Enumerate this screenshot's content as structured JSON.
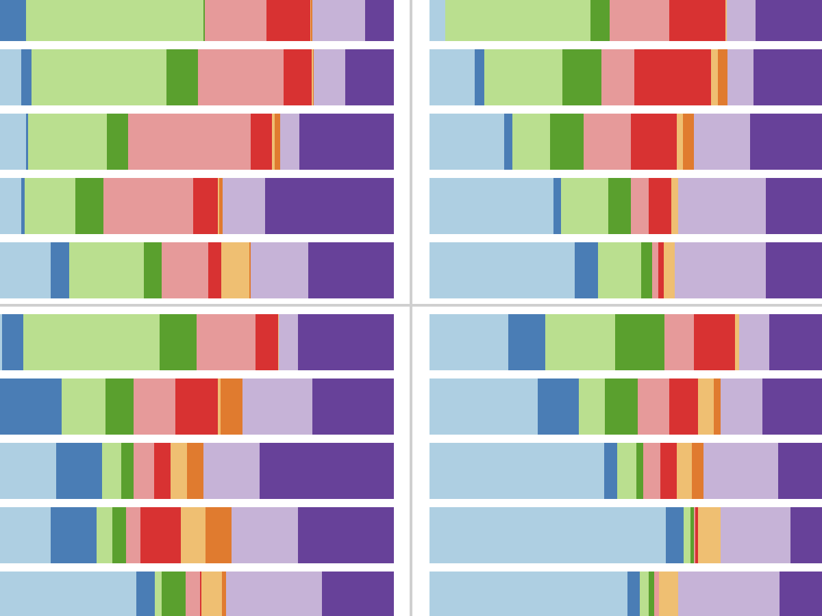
{
  "chart_data": [
    {
      "type": "stacked-barh",
      "xlim": [
        0,
        575
      ],
      "series": [
        {
          "color": "#aecfe2",
          "values": [
            0,
            31,
            38,
            31,
            74
          ]
        },
        {
          "color": "#4a7db5",
          "values": [
            38,
            15,
            3,
            5,
            27
          ]
        },
        {
          "color": "#badf8f",
          "values": [
            259,
            197,
            115,
            74,
            109
          ]
        },
        {
          "color": "#5aa02e",
          "values": [
            2,
            46,
            31,
            41,
            26
          ]
        },
        {
          "color": "#e69a9a",
          "values": [
            90,
            125,
            179,
            131,
            68
          ]
        },
        {
          "color": "#d83232",
          "values": [
            64,
            41,
            31,
            36,
            19
          ]
        },
        {
          "color": "#efbf72",
          "values": [
            1,
            2,
            4,
            2,
            41
          ]
        },
        {
          "color": "#e07b2f",
          "values": [
            2,
            1,
            8,
            5,
            2
          ]
        },
        {
          "color": "#c6b3d7",
          "values": [
            77,
            46,
            28,
            62,
            84
          ]
        },
        {
          "color": "#674199",
          "values": [
            42,
            71,
            138,
            188,
            125
          ]
        }
      ]
    },
    {
      "type": "stacked-barh",
      "xlim": [
        0,
        573
      ],
      "series": [
        {
          "color": "#aecfe2",
          "values": [
            23,
            66,
            109,
            181,
            212
          ]
        },
        {
          "color": "#4a7db5",
          "values": [
            0,
            14,
            12,
            11,
            34
          ]
        },
        {
          "color": "#badf8f",
          "values": [
            212,
            114,
            55,
            69,
            63
          ]
        },
        {
          "color": "#5aa02e",
          "values": [
            28,
            57,
            49,
            33,
            16
          ]
        },
        {
          "color": "#e69a9a",
          "values": [
            87,
            48,
            69,
            26,
            9
          ]
        },
        {
          "color": "#d83232",
          "values": [
            82,
            112,
            67,
            33,
            8
          ]
        },
        {
          "color": "#efbf72",
          "values": [
            2,
            10,
            9,
            10,
            16
          ]
        },
        {
          "color": "#e07b2f",
          "values": [
            0,
            14,
            16,
            0,
            0
          ]
        },
        {
          "color": "#c6b3d7",
          "values": [
            42,
            38,
            82,
            128,
            133
          ]
        },
        {
          "color": "#674199",
          "values": [
            97,
            100,
            105,
            82,
            82
          ]
        }
      ]
    },
    {
      "type": "stacked-barh",
      "xlim": [
        0,
        575
      ],
      "series": [
        {
          "color": "#aecfe2",
          "values": [
            3,
            0,
            82,
            74,
            199
          ]
        },
        {
          "color": "#4a7db5",
          "values": [
            31,
            90,
            67,
            67,
            27
          ]
        },
        {
          "color": "#badf8f",
          "values": [
            199,
            64,
            28,
            23,
            10
          ]
        },
        {
          "color": "#5aa02e",
          "values": [
            54,
            41,
            18,
            20,
            35
          ]
        },
        {
          "color": "#e69a9a",
          "values": [
            86,
            61,
            30,
            21,
            21
          ]
        },
        {
          "color": "#d83232",
          "values": [
            33,
            62,
            24,
            59,
            2
          ]
        },
        {
          "color": "#efbf72",
          "values": [
            1,
            4,
            24,
            36,
            30
          ]
        },
        {
          "color": "#e07b2f",
          "values": [
            0,
            32,
            24,
            38,
            6
          ]
        },
        {
          "color": "#c6b3d7",
          "values": [
            28,
            102,
            82,
            97,
            140
          ]
        },
        {
          "color": "#674199",
          "values": [
            140,
            119,
            196,
            140,
            105
          ]
        }
      ]
    },
    {
      "type": "stacked-barh",
      "xlim": [
        0,
        573
      ],
      "series": [
        {
          "color": "#aecfe2",
          "values": [
            115,
            158,
            255,
            345,
            289
          ]
        },
        {
          "color": "#4a7db5",
          "values": [
            54,
            60,
            19,
            26,
            18
          ]
        },
        {
          "color": "#badf8f",
          "values": [
            102,
            38,
            28,
            10,
            13
          ]
        },
        {
          "color": "#5aa02e",
          "values": [
            72,
            48,
            10,
            5,
            8
          ]
        },
        {
          "color": "#e69a9a",
          "values": [
            43,
            46,
            25,
            2,
            7
          ]
        },
        {
          "color": "#d83232",
          "values": [
            60,
            42,
            24,
            4,
            0
          ]
        },
        {
          "color": "#efbf72",
          "values": [
            6,
            23,
            22,
            33,
            28
          ]
        },
        {
          "color": "#e07b2f",
          "values": [
            0,
            10,
            17,
            0,
            0
          ]
        },
        {
          "color": "#c6b3d7",
          "values": [
            44,
            61,
            109,
            102,
            148
          ]
        },
        {
          "color": "#674199",
          "values": [
            77,
            87,
            64,
            46,
            62
          ]
        }
      ]
    }
  ]
}
